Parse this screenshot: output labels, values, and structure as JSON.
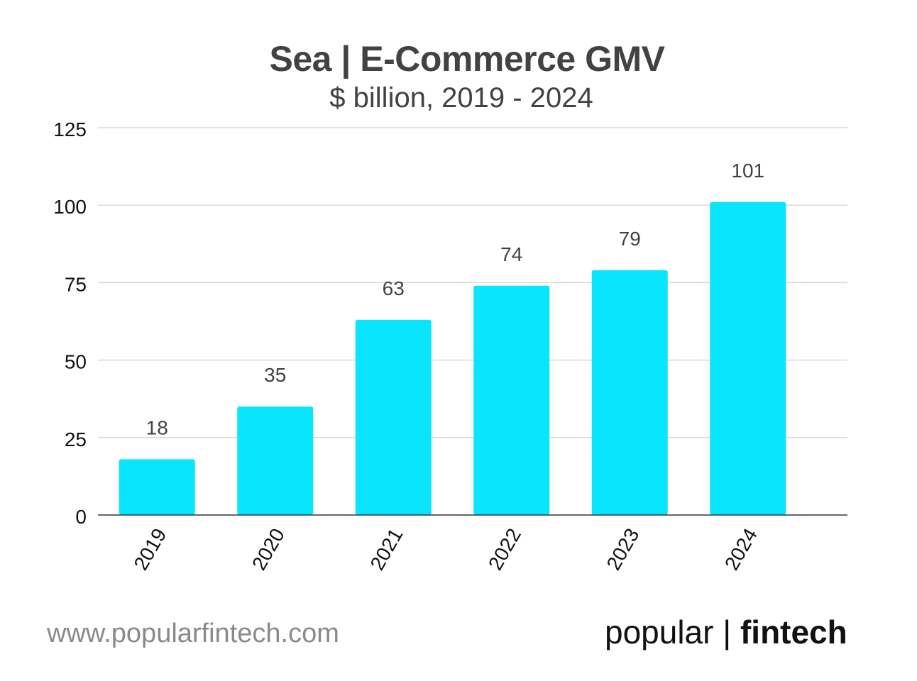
{
  "chart_data": {
    "type": "bar",
    "title": "Sea | E-Commerce GMV",
    "subtitle": "$ billion, 2019 - 2024",
    "categories": [
      "2019",
      "2020",
      "2021",
      "2022",
      "2023",
      "2024"
    ],
    "values": [
      18,
      35,
      63,
      74,
      79,
      101
    ],
    "data_labels": [
      "18",
      "35",
      "63",
      "74",
      "79",
      "101"
    ],
    "y_ticks": [
      0,
      25,
      50,
      75,
      100,
      125
    ],
    "ylim": [
      0,
      125
    ],
    "xlabel": "",
    "ylabel": "",
    "grid": true,
    "bar_color": "#08e5fc"
  },
  "footer": {
    "url": "www.popularfintech.com",
    "brand_light": "popular | ",
    "brand_bold": "fintech"
  },
  "colors": {
    "bar": "#08e5fc",
    "gridline": "#d9d9d9",
    "axis": "#333333",
    "text": "#424242"
  }
}
